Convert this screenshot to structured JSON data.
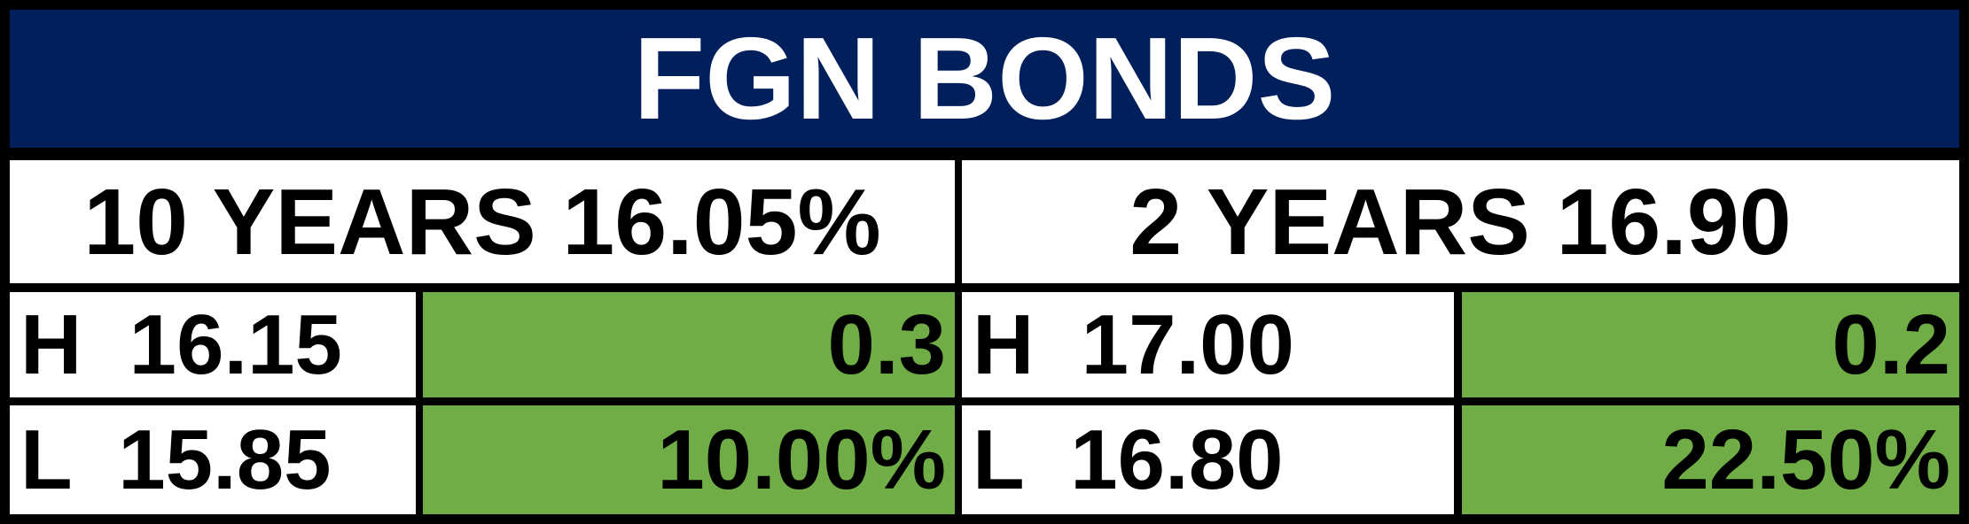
{
  "header": {
    "title": "FGN BONDS"
  },
  "panels": [
    {
      "heading": "10 YEARS 16.05%",
      "rows": [
        [
          "H  16.15",
          "0.3"
        ],
        [
          "L  15.85",
          "10.00%"
        ]
      ]
    },
    {
      "heading": "2 YEARS 16.90",
      "rows": [
        [
          "H  17.00",
          "0.2"
        ],
        [
          "L  16.80",
          "22.50%"
        ]
      ]
    }
  ]
}
